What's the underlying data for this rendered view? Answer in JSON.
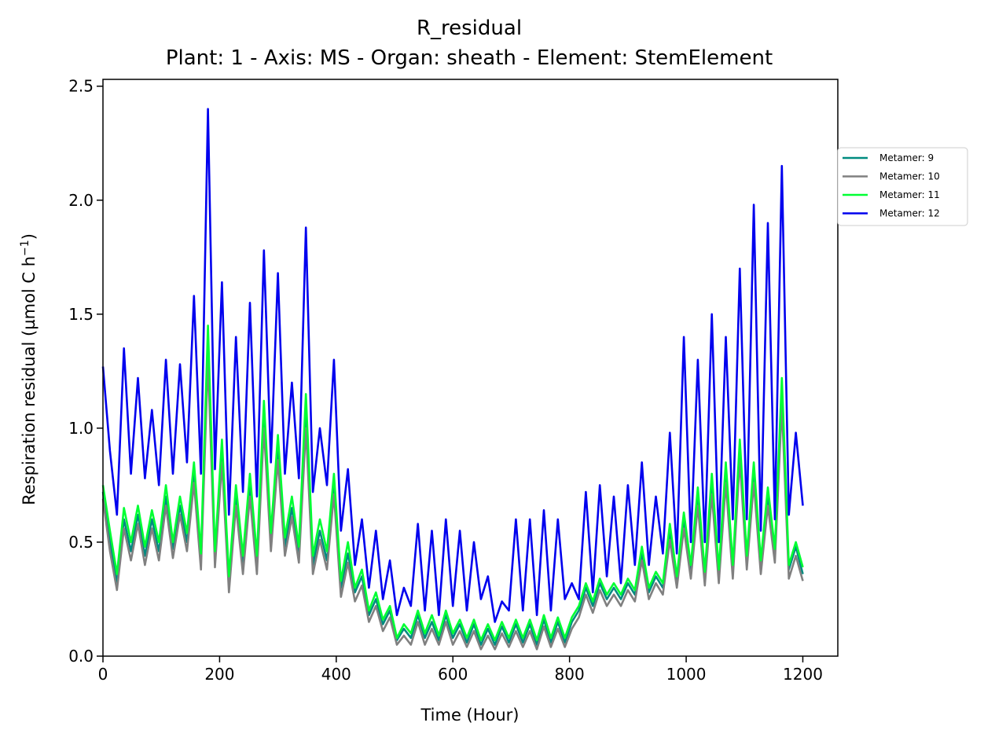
{
  "chart_data": {
    "type": "line",
    "title": "R_residual",
    "subtitle": "Plant: 1 - Axis: MS - Organ: sheath - Element: StemElement",
    "xlabel": "Time (Hour)",
    "ylabel": "Respiration residual (µmol C h",
    "ylabel_exp": "−1",
    "ylabel_close": ")",
    "xlim": [
      0,
      1260
    ],
    "ylim": [
      0,
      2.53
    ],
    "xticks": [
      0,
      200,
      400,
      600,
      800,
      1000,
      1200
    ],
    "xtick_labels": [
      "0",
      "200",
      "400",
      "600",
      "800",
      "1000",
      "1200"
    ],
    "yticks": [
      0,
      0.5,
      1.0,
      1.5,
      2.0,
      2.5
    ],
    "ytick_labels": [
      "0.0",
      "0.5",
      "1.0",
      "1.5",
      "2.0",
      "2.5"
    ],
    "legend_position": "right, outside top",
    "x": [
      0,
      12,
      24,
      36,
      48,
      60,
      72,
      84,
      96,
      108,
      120,
      132,
      144,
      156,
      168,
      180,
      192,
      204,
      216,
      228,
      240,
      252,
      264,
      276,
      288,
      300,
      312,
      324,
      336,
      348,
      360,
      372,
      384,
      396,
      408,
      420,
      432,
      444,
      456,
      468,
      480,
      492,
      504,
      516,
      528,
      540,
      552,
      564,
      576,
      588,
      600,
      612,
      624,
      636,
      648,
      660,
      672,
      684,
      696,
      708,
      720,
      732,
      744,
      756,
      768,
      780,
      792,
      804,
      816,
      828,
      840,
      852,
      864,
      876,
      888,
      900,
      912,
      924,
      936,
      948,
      960,
      972,
      984,
      996,
      1008,
      1020,
      1032,
      1044,
      1056,
      1068,
      1080,
      1092,
      1104,
      1116,
      1128,
      1140,
      1152,
      1164,
      1176,
      1188,
      1200
    ],
    "series": [
      {
        "name": "Metamer: 9",
        "color": "#008b80",
        "values": [
          0.72,
          0.5,
          0.32,
          0.6,
          0.46,
          0.62,
          0.44,
          0.6,
          0.46,
          0.7,
          0.47,
          0.66,
          0.5,
          0.8,
          0.42,
          1.35,
          0.43,
          0.9,
          0.32,
          0.7,
          0.4,
          0.74,
          0.4,
          1.05,
          0.5,
          0.9,
          0.48,
          0.65,
          0.45,
          1.05,
          0.4,
          0.55,
          0.42,
          0.75,
          0.3,
          0.45,
          0.28,
          0.35,
          0.18,
          0.25,
          0.14,
          0.2,
          0.07,
          0.12,
          0.08,
          0.18,
          0.08,
          0.15,
          0.07,
          0.18,
          0.08,
          0.14,
          0.06,
          0.14,
          0.05,
          0.12,
          0.05,
          0.13,
          0.06,
          0.14,
          0.06,
          0.14,
          0.05,
          0.16,
          0.06,
          0.15,
          0.06,
          0.15,
          0.2,
          0.3,
          0.22,
          0.32,
          0.25,
          0.3,
          0.25,
          0.32,
          0.27,
          0.45,
          0.28,
          0.35,
          0.3,
          0.55,
          0.33,
          0.6,
          0.38,
          0.7,
          0.35,
          0.75,
          0.36,
          0.8,
          0.38,
          0.9,
          0.42,
          0.8,
          0.4,
          0.7,
          0.45,
          1.15,
          0.38,
          0.48,
          0.36
        ]
      },
      {
        "name": "Metamer: 10",
        "color": "#808080",
        "values": [
          0.69,
          0.46,
          0.29,
          0.56,
          0.42,
          0.58,
          0.4,
          0.56,
          0.42,
          0.66,
          0.43,
          0.62,
          0.46,
          0.76,
          0.38,
          1.3,
          0.39,
          0.85,
          0.28,
          0.66,
          0.36,
          0.7,
          0.36,
          1.0,
          0.46,
          0.86,
          0.44,
          0.61,
          0.41,
          1.0,
          0.36,
          0.51,
          0.38,
          0.71,
          0.26,
          0.41,
          0.24,
          0.31,
          0.15,
          0.22,
          0.11,
          0.17,
          0.05,
          0.09,
          0.05,
          0.15,
          0.05,
          0.12,
          0.05,
          0.15,
          0.05,
          0.11,
          0.04,
          0.11,
          0.03,
          0.09,
          0.03,
          0.1,
          0.04,
          0.11,
          0.04,
          0.11,
          0.03,
          0.13,
          0.04,
          0.12,
          0.04,
          0.12,
          0.17,
          0.27,
          0.19,
          0.29,
          0.22,
          0.27,
          0.22,
          0.29,
          0.24,
          0.42,
          0.25,
          0.32,
          0.27,
          0.51,
          0.3,
          0.56,
          0.34,
          0.66,
          0.31,
          0.71,
          0.32,
          0.76,
          0.34,
          0.86,
          0.38,
          0.76,
          0.36,
          0.66,
          0.41,
          1.1,
          0.34,
          0.44,
          0.33
        ]
      },
      {
        "name": "Metamer: 11",
        "color": "#00ff33",
        "values": [
          0.75,
          0.55,
          0.36,
          0.65,
          0.5,
          0.66,
          0.48,
          0.64,
          0.5,
          0.75,
          0.5,
          0.7,
          0.54,
          0.85,
          0.45,
          1.45,
          0.46,
          0.95,
          0.35,
          0.75,
          0.44,
          0.8,
          0.44,
          1.12,
          0.54,
          0.97,
          0.52,
          0.7,
          0.48,
          1.15,
          0.44,
          0.6,
          0.46,
          0.8,
          0.33,
          0.5,
          0.3,
          0.38,
          0.2,
          0.28,
          0.16,
          0.22,
          0.08,
          0.14,
          0.1,
          0.2,
          0.1,
          0.18,
          0.09,
          0.2,
          0.1,
          0.16,
          0.08,
          0.16,
          0.07,
          0.14,
          0.07,
          0.15,
          0.08,
          0.16,
          0.08,
          0.16,
          0.07,
          0.18,
          0.08,
          0.17,
          0.08,
          0.17,
          0.22,
          0.32,
          0.24,
          0.34,
          0.27,
          0.32,
          0.27,
          0.34,
          0.29,
          0.48,
          0.3,
          0.37,
          0.32,
          0.58,
          0.35,
          0.63,
          0.4,
          0.74,
          0.37,
          0.8,
          0.38,
          0.85,
          0.4,
          0.95,
          0.44,
          0.85,
          0.42,
          0.74,
          0.47,
          1.22,
          0.4,
          0.5,
          0.39
        ]
      },
      {
        "name": "Metamer: 12",
        "color": "#0000ee",
        "values": [
          1.27,
          0.9,
          0.62,
          1.35,
          0.8,
          1.22,
          0.78,
          1.08,
          0.75,
          1.3,
          0.8,
          1.28,
          0.85,
          1.58,
          0.8,
          2.4,
          0.82,
          1.64,
          0.62,
          1.4,
          0.72,
          1.55,
          0.7,
          1.78,
          0.85,
          1.68,
          0.8,
          1.2,
          0.78,
          1.88,
          0.72,
          1.0,
          0.75,
          1.3,
          0.55,
          0.82,
          0.4,
          0.6,
          0.3,
          0.55,
          0.25,
          0.42,
          0.18,
          0.3,
          0.22,
          0.58,
          0.2,
          0.55,
          0.18,
          0.6,
          0.22,
          0.55,
          0.2,
          0.5,
          0.25,
          0.35,
          0.15,
          0.24,
          0.2,
          0.6,
          0.2,
          0.6,
          0.18,
          0.64,
          0.2,
          0.6,
          0.25,
          0.32,
          0.25,
          0.72,
          0.28,
          0.75,
          0.35,
          0.7,
          0.32,
          0.75,
          0.4,
          0.85,
          0.4,
          0.7,
          0.45,
          0.98,
          0.45,
          1.4,
          0.5,
          1.3,
          0.5,
          1.5,
          0.5,
          1.4,
          0.6,
          1.7,
          0.6,
          1.98,
          0.55,
          1.9,
          0.6,
          2.15,
          0.62,
          0.98,
          0.66
        ]
      }
    ]
  }
}
